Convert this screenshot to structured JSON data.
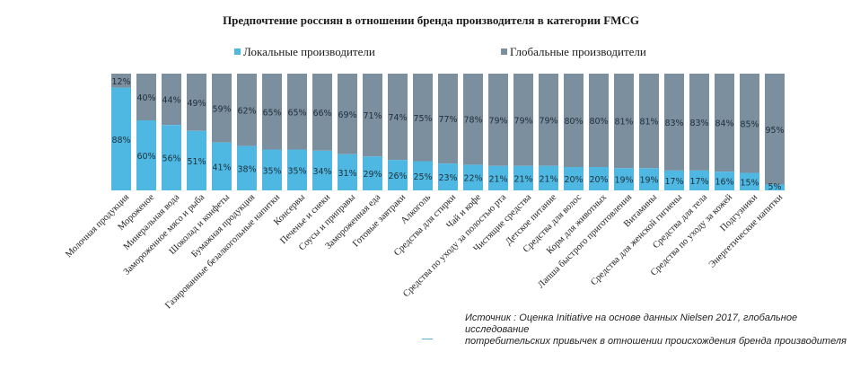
{
  "colors": {
    "local": "#4fb8e2",
    "global": "#7c8f9e"
  },
  "chart_data": {
    "type": "bar",
    "stacked": true,
    "normalized": true,
    "title": "Предпочтение  россиян  в отношении  бренда производителя  в категории  FMCG",
    "xlabel": "",
    "ylabel": "",
    "ylim": [
      0,
      100
    ],
    "grid": false,
    "legend_position": "top",
    "value_suffix": "%",
    "categories": [
      "Молочная продукция",
      "Мороженое",
      "Минеральная вода",
      "Замороженное мясо и рыба",
      "Шоколад и конфеты",
      "Бумажная продукция",
      "Газированные безалкогольные напитки",
      "Консервы",
      "Печенье и снеки",
      "Соусы и приправы",
      "Замороженная еда",
      "Готовые завтраки",
      "Алкоголь",
      "Средства для стирки",
      "Чай и кофе",
      "Средства по уходу за полостью рта",
      "Чистящие средства",
      "Детское питание",
      "Средства для волос",
      "Корм для животных",
      "Лапша быстрого приготовления",
      "Витамины",
      "Средства для женской гигиены",
      "Средства для тела",
      "Средства по уходу за кожей",
      "Подгузники",
      "Энергетические напитки"
    ],
    "series": [
      {
        "name": "Локальные производители",
        "values": [
          88,
          60,
          56,
          51,
          41,
          38,
          35,
          35,
          34,
          31,
          29,
          26,
          25,
          23,
          22,
          21,
          21,
          21,
          20,
          20,
          19,
          19,
          17,
          17,
          16,
          15,
          5
        ]
      },
      {
        "name": "Глобальные производители",
        "values": [
          12,
          40,
          44,
          49,
          59,
          62,
          65,
          65,
          66,
          69,
          71,
          74,
          75,
          77,
          78,
          79,
          79,
          79,
          80,
          80,
          81,
          81,
          83,
          83,
          84,
          85,
          95
        ]
      }
    ]
  },
  "source_note": {
    "line1": "Источник : Оценка Initiative на основе данных Nielsen 2017, глобальное исследование",
    "line2": "потребительских привычек в отношении происхождения бренда производителя"
  }
}
